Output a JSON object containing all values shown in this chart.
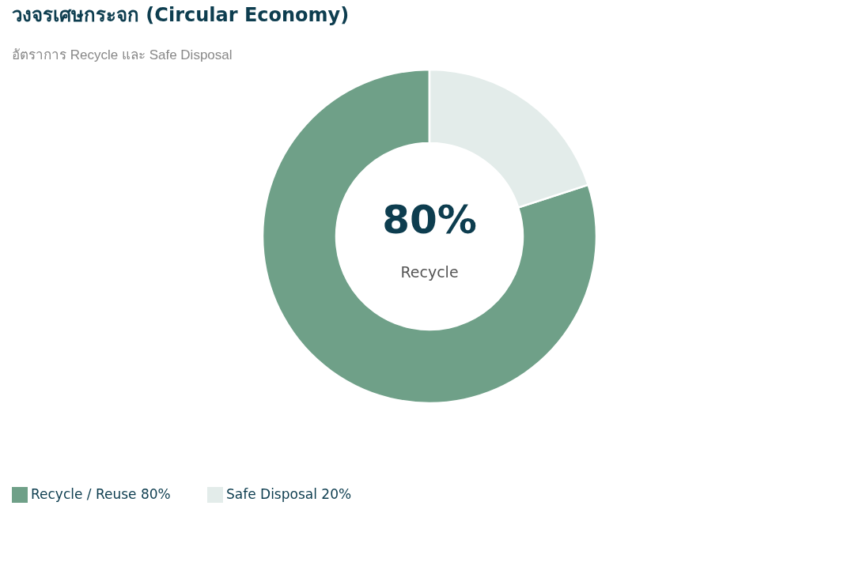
{
  "chart_data": {
    "type": "donut",
    "title": "วงจรเศษกระจก (Circular Economy)",
    "subtitle": "อัตราการ Recycle และ Safe Disposal",
    "categories": [
      "Recycle / Reuse  80%",
      "Safe Disposal  20%"
    ],
    "values": [
      80,
      20
    ],
    "colors": [
      "#6fa088",
      "#e3ecea"
    ],
    "annotations": [
      "80%",
      "Recycle"
    ],
    "legend": "bottom"
  }
}
